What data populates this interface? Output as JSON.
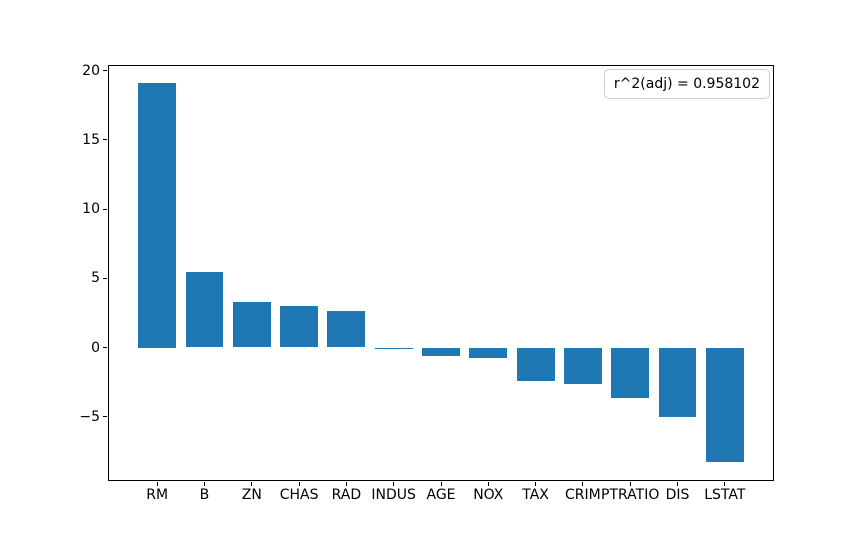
{
  "figure": {
    "background_color": "#ffffff",
    "text_color": "#000000",
    "spine_color": "#000000"
  },
  "chart_data": {
    "type": "bar",
    "title": "",
    "xlabel": "",
    "ylabel": "",
    "categories": [
      "RM",
      "B",
      "ZN",
      "CHAS",
      "RAD",
      "INDUS",
      "AGE",
      "NOX",
      "TAX",
      "CRIM",
      "PTRATIO",
      "DIS",
      "LSTAT"
    ],
    "values": [
      19.1,
      5.45,
      3.3,
      3.0,
      2.6,
      -0.07,
      -0.6,
      -0.78,
      -2.42,
      -2.62,
      -3.65,
      -5.0,
      -8.28
    ],
    "bar_color": "#1f77b4",
    "bar_width_fraction": 0.8,
    "yticks": [
      20,
      15,
      10,
      5,
      0,
      -5
    ],
    "ylim": [
      -9.64,
      20.4
    ],
    "xlim": [
      -1.04,
      13.04
    ],
    "grid": false,
    "legend": null,
    "annotation": "r^2(adj) = 0.958102",
    "annotation_position": "top-right"
  }
}
